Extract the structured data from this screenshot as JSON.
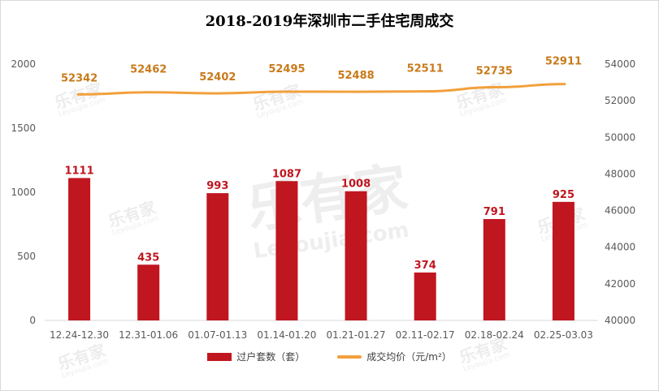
{
  "chart_data": {
    "type": "bar+line",
    "title": "2018-2019年深圳市二手住宅周成交",
    "categories": [
      "12.24-12.30",
      "12.31-01.06",
      "01.07-01.13",
      "01.14-01.20",
      "01.21-01.27",
      "02.11-02.17",
      "02.18-02.24",
      "02.25-03.03"
    ],
    "series": [
      {
        "name": "过户套数（套）",
        "type": "bar",
        "axis": "left",
        "color": "#c0161f",
        "values": [
          1111,
          435,
          993,
          1087,
          1008,
          374,
          791,
          925
        ]
      },
      {
        "name": "成交均价（元/m²）",
        "type": "line",
        "axis": "right",
        "color": "#f2a03c",
        "values": [
          52342,
          52462,
          52402,
          52495,
          52488,
          52511,
          52735,
          52911
        ]
      }
    ],
    "left_axis": {
      "ylim": [
        0,
        2000
      ],
      "ticks": [
        0,
        500,
        1000,
        1500,
        2000
      ]
    },
    "right_axis": {
      "ylim": [
        40000,
        54000
      ],
      "ticks": [
        40000,
        42000,
        44000,
        46000,
        48000,
        50000,
        52000,
        54000
      ]
    },
    "bar_label_color": "#c0161f",
    "line_label_color": "#c97a1a",
    "grid": false,
    "legend_position": "bottom"
  },
  "watermark": {
    "brand": "乐有家",
    "domain": "Leyoujia.com"
  }
}
